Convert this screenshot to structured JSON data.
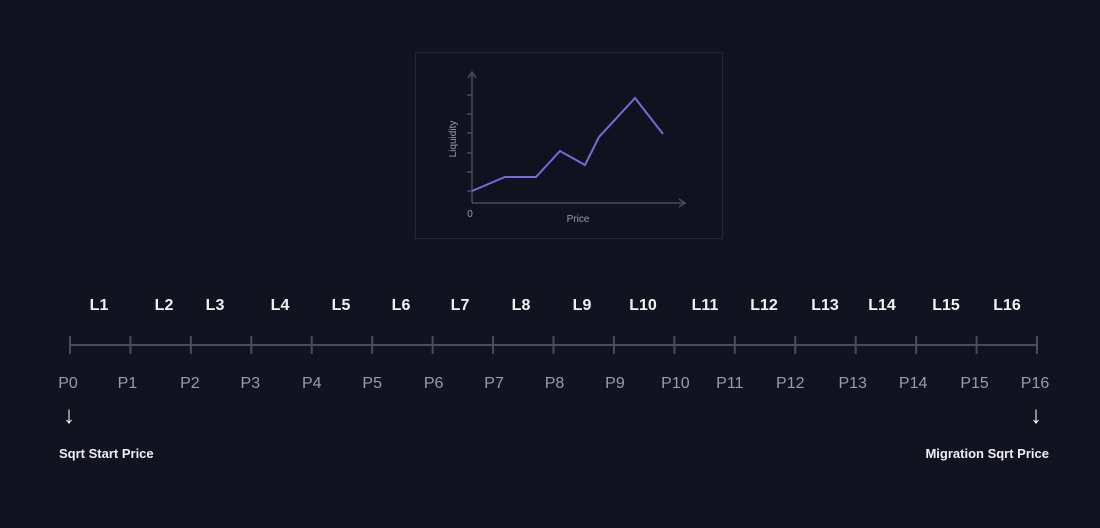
{
  "chart": {
    "y_axis_label": "Liquidity",
    "x_axis_label": "Price",
    "origin_label": "0",
    "line_color": "#7b68d9"
  },
  "liquidity_labels": [
    "L1",
    "L2",
    "L3",
    "L4",
    "L5",
    "L6",
    "L7",
    "L8",
    "L9",
    "L10",
    "L11",
    "L12",
    "L13",
    "L14",
    "L15",
    "L16"
  ],
  "price_labels": [
    "P0",
    "P1",
    "P2",
    "P3",
    "P4",
    "P5",
    "P6",
    "P7",
    "P8",
    "P9",
    "P10",
    "P11",
    "P12",
    "P13",
    "P14",
    "P15",
    "P16"
  ],
  "start_caption": "Sqrt Start Price",
  "end_caption": "Migration Sqrt Price",
  "arrow_icon": "arrow-down-icon"
}
